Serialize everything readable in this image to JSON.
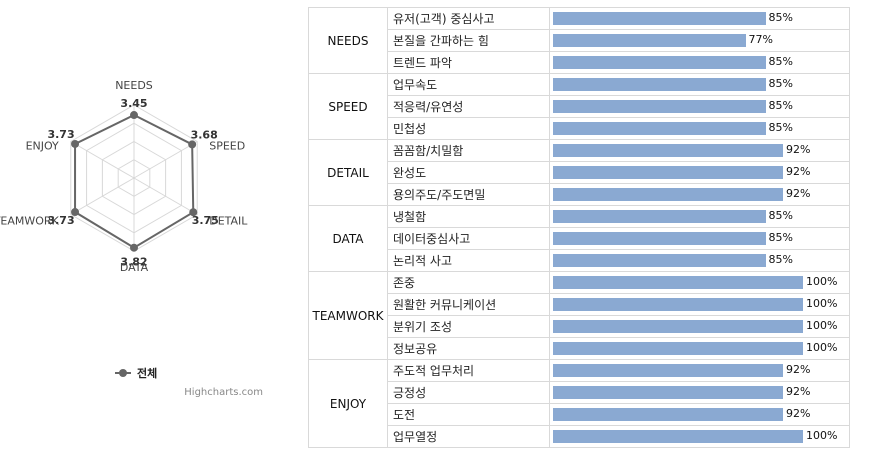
{
  "radar": {
    "axes": [
      "NEEDS",
      "SPEED",
      "DETAIL",
      "DATA",
      "TEAMWORK",
      "ENJOY"
    ],
    "values": [
      3.45,
      3.68,
      3.75,
      3.82,
      3.73,
      3.73
    ],
    "value_labels": [
      "3.45",
      "3.68",
      "3.75",
      "3.82",
      "3.73",
      "3.73"
    ],
    "max": 4,
    "series_name": "전체",
    "line_color": "#666666",
    "credits": "Highcharts.com"
  },
  "chart_data": [
    {
      "type": "radar",
      "categories": [
        "NEEDS",
        "SPEED",
        "DETAIL",
        "DATA",
        "TEAMWORK",
        "ENJOY"
      ],
      "series": [
        {
          "name": "전체",
          "values": [
            3.45,
            3.68,
            3.75,
            3.82,
            3.73,
            3.73
          ]
        }
      ],
      "legend": "bottom"
    },
    {
      "type": "bar",
      "bar_color": "#8aa9d2",
      "groups": [
        {
          "category": "NEEDS",
          "items": [
            {
              "label": "유저(고객) 중심사고",
              "value": 85,
              "value_label": "85%"
            },
            {
              "label": "본질을 간파하는 힘",
              "value": 77,
              "value_label": "77%"
            },
            {
              "label": "트렌드 파악",
              "value": 85,
              "value_label": "85%"
            }
          ]
        },
        {
          "category": "SPEED",
          "items": [
            {
              "label": "업무속도",
              "value": 85,
              "value_label": "85%"
            },
            {
              "label": "적응력/유연성",
              "value": 85,
              "value_label": "85%"
            },
            {
              "label": "민첩성",
              "value": 85,
              "value_label": "85%"
            }
          ]
        },
        {
          "category": "DETAIL",
          "items": [
            {
              "label": "꼼꼼함/치밀함",
              "value": 92,
              "value_label": "92%"
            },
            {
              "label": "완성도",
              "value": 92,
              "value_label": "92%"
            },
            {
              "label": "용의주도/주도면밀",
              "value": 92,
              "value_label": "92%"
            }
          ]
        },
        {
          "category": "DATA",
          "items": [
            {
              "label": "냉철함",
              "value": 85,
              "value_label": "85%"
            },
            {
              "label": "데이터중심사고",
              "value": 85,
              "value_label": "85%"
            },
            {
              "label": "논리적 사고",
              "value": 85,
              "value_label": "85%"
            }
          ]
        },
        {
          "category": "TEAMWORK",
          "items": [
            {
              "label": "존중",
              "value": 100,
              "value_label": "100%"
            },
            {
              "label": "원활한 커뮤니케이션",
              "value": 100,
              "value_label": "100%"
            },
            {
              "label": "분위기 조성",
              "value": 100,
              "value_label": "100%"
            },
            {
              "label": "정보공유",
              "value": 100,
              "value_label": "100%"
            }
          ]
        },
        {
          "category": "ENJOY",
          "items": [
            {
              "label": "주도적 업무처리",
              "value": 92,
              "value_label": "92%"
            },
            {
              "label": "긍정성",
              "value": 92,
              "value_label": "92%"
            },
            {
              "label": "도전",
              "value": 92,
              "value_label": "92%"
            },
            {
              "label": "업무열정",
              "value": 100,
              "value_label": "100%"
            }
          ]
        }
      ]
    }
  ]
}
